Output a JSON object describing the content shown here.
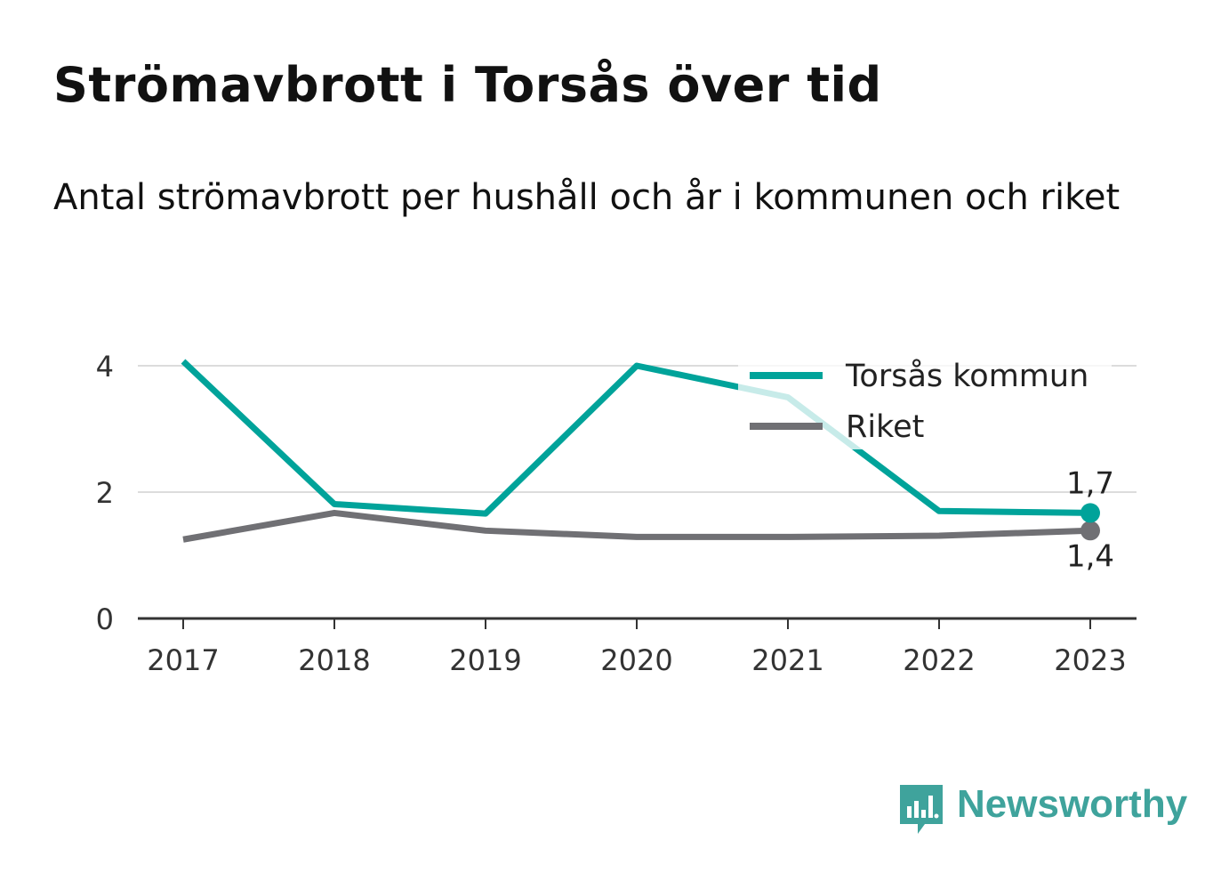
{
  "header": {
    "title": "Strömavbrott i Torsås över tid",
    "subtitle": "Antal strömavbrott per hushåll och år i kommunen och riket"
  },
  "chart_data": {
    "type": "line",
    "x": [
      "2017",
      "2018",
      "2019",
      "2020",
      "2021",
      "2022",
      "2023"
    ],
    "series": [
      {
        "name": "Torsås kommun",
        "color": "#00a39a",
        "values": [
          4.07,
          1.81,
          1.66,
          4.0,
          3.5,
          1.7,
          1.67
        ]
      },
      {
        "name": "Riket",
        "color": "#707074",
        "values": [
          1.25,
          1.67,
          1.39,
          1.29,
          1.29,
          1.31,
          1.39
        ]
      }
    ],
    "ylim": [
      0,
      4
    ],
    "yticks": [
      "0",
      "2",
      "4"
    ],
    "grid": true,
    "legend": "top-right",
    "end_labels": [
      "1,7",
      "1,4"
    ]
  },
  "brand": {
    "name": "Newsworthy",
    "icon": "newsworthy-logo-icon",
    "color": "#3fa39c"
  }
}
